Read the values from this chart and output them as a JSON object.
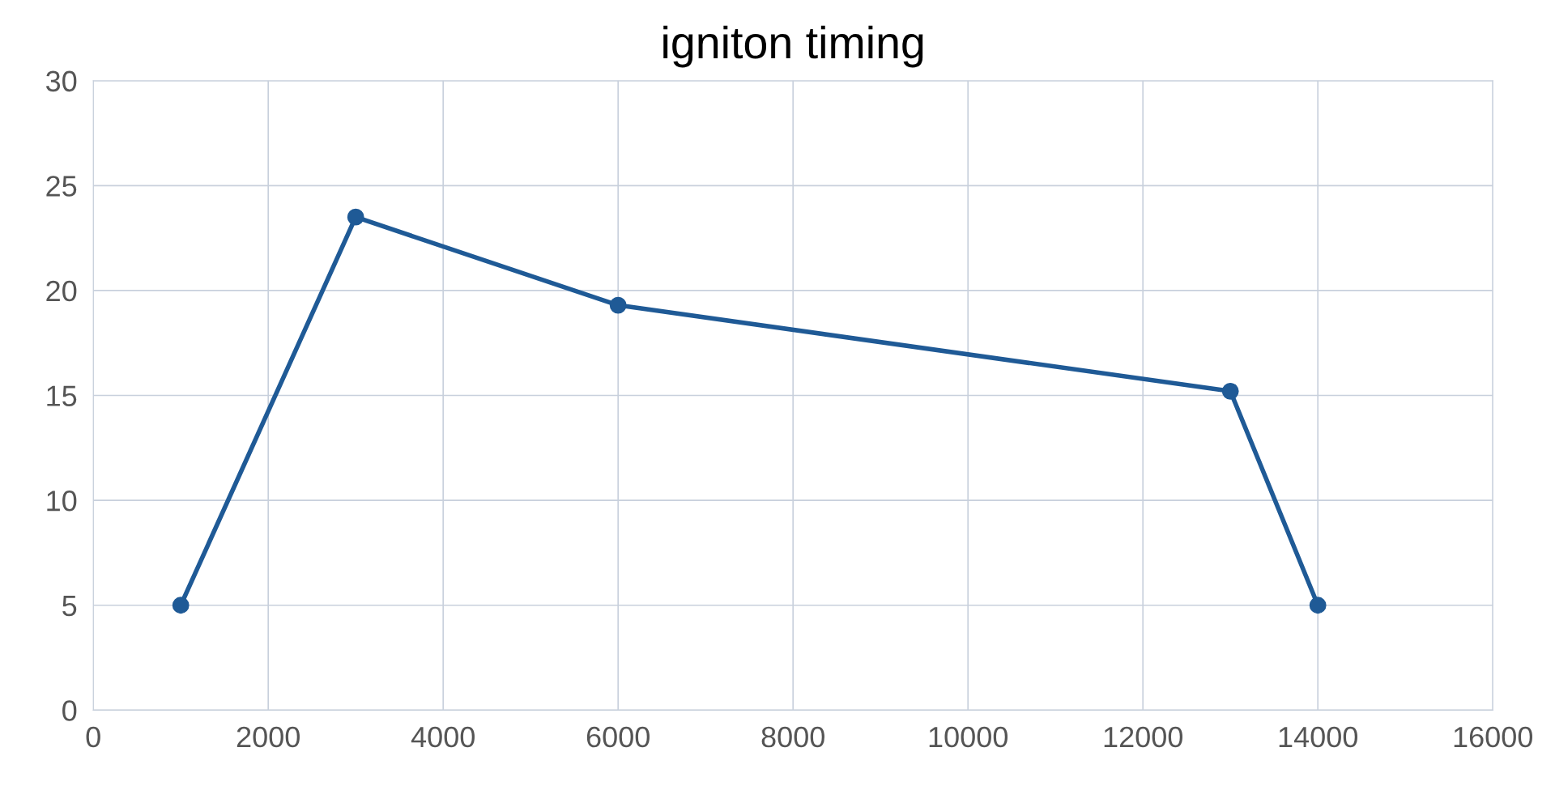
{
  "chart_data": {
    "type": "line",
    "title": "igniton timing",
    "x": [
      1000,
      3000,
      6000,
      13000,
      14000
    ],
    "series": [
      {
        "color": "#1f5a96",
        "values": [
          5,
          23.5,
          19.3,
          15.2,
          5
        ]
      }
    ],
    "xlim": [
      0,
      16000
    ],
    "xticks": [
      0,
      2000,
      4000,
      6000,
      8000,
      10000,
      12000,
      14000,
      16000
    ],
    "ylim": [
      0,
      30
    ],
    "yticks": [
      0,
      5,
      10,
      15,
      20,
      25,
      30
    ],
    "grid": true,
    "marker": "circle",
    "line_style": "solid",
    "legend": false
  }
}
